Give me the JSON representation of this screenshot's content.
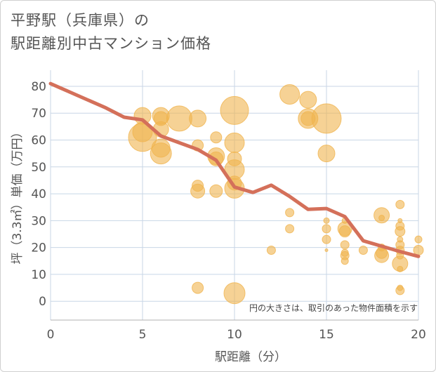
{
  "chart_data": {
    "type": "scatter",
    "title_lines": [
      "平野駅（兵庫県）の",
      "駅距離別中古マンション価格"
    ],
    "xlabel": "駅距離（分）",
    "ylabel": "坪（3.3㎡）単価（万円）",
    "note": "円の大きさは、取引のあった物件面積を示す",
    "xlim": [
      0,
      20
    ],
    "ylim": [
      -7,
      86
    ],
    "xticks": [
      0,
      5,
      10,
      15,
      20
    ],
    "yticks": [
      0,
      10,
      20,
      30,
      40,
      50,
      60,
      70,
      80
    ],
    "grid": true,
    "colors": {
      "bubble": "#f0b44f",
      "line": "#d4705a",
      "grid": "#c8d6e6"
    },
    "bubbles": [
      {
        "x": 5,
        "y": 69,
        "s": 12
      },
      {
        "x": 5,
        "y": 61,
        "s": 20
      },
      {
        "x": 5,
        "y": 63,
        "s": 14
      },
      {
        "x": 6,
        "y": 69,
        "s": 12
      },
      {
        "x": 6,
        "y": 68,
        "s": 10
      },
      {
        "x": 6,
        "y": 64,
        "s": 11
      },
      {
        "x": 6,
        "y": 57,
        "s": 13
      },
      {
        "x": 6,
        "y": 55,
        "s": 15
      },
      {
        "x": 7,
        "y": 68,
        "s": 18
      },
      {
        "x": 8,
        "y": 68,
        "s": 12
      },
      {
        "x": 8,
        "y": 58,
        "s": 8
      },
      {
        "x": 8,
        "y": 43,
        "s": 8
      },
      {
        "x": 8,
        "y": 41,
        "s": 10
      },
      {
        "x": 8,
        "y": 5,
        "s": 8
      },
      {
        "x": 9,
        "y": 61,
        "s": 8
      },
      {
        "x": 9,
        "y": 54,
        "s": 12
      },
      {
        "x": 9,
        "y": 53,
        "s": 10
      },
      {
        "x": 9,
        "y": 41,
        "s": 9
      },
      {
        "x": 10,
        "y": 71,
        "s": 20
      },
      {
        "x": 10,
        "y": 59,
        "s": 14
      },
      {
        "x": 10,
        "y": 53,
        "s": 10
      },
      {
        "x": 10,
        "y": 49,
        "s": 14
      },
      {
        "x": 10,
        "y": 44,
        "s": 10
      },
      {
        "x": 10,
        "y": 42,
        "s": 14
      },
      {
        "x": 10,
        "y": 3,
        "s": 15
      },
      {
        "x": 12,
        "y": 19,
        "s": 6
      },
      {
        "x": 13,
        "y": 77,
        "s": 14
      },
      {
        "x": 13,
        "y": 33,
        "s": 6
      },
      {
        "x": 13,
        "y": 27,
        "s": 6
      },
      {
        "x": 14,
        "y": 75,
        "s": 12
      },
      {
        "x": 14,
        "y": 68,
        "s": 14
      },
      {
        "x": 14,
        "y": 68,
        "s": 10
      },
      {
        "x": 15,
        "y": 68,
        "s": 21
      },
      {
        "x": 15,
        "y": 55,
        "s": 12
      },
      {
        "x": 15,
        "y": 30,
        "s": 4
      },
      {
        "x": 15,
        "y": 27,
        "s": 6
      },
      {
        "x": 15,
        "y": 23,
        "s": 6
      },
      {
        "x": 15,
        "y": 19,
        "s": 2
      },
      {
        "x": 16,
        "y": 30,
        "s": 4
      },
      {
        "x": 16,
        "y": 27,
        "s": 10
      },
      {
        "x": 16,
        "y": 26,
        "s": 8
      },
      {
        "x": 16,
        "y": 21,
        "s": 6
      },
      {
        "x": 16,
        "y": 18,
        "s": 5
      },
      {
        "x": 16,
        "y": 17,
        "s": 6
      },
      {
        "x": 16,
        "y": 15,
        "s": 5
      },
      {
        "x": 17,
        "y": 19,
        "s": 6
      },
      {
        "x": 18,
        "y": 32,
        "s": 11
      },
      {
        "x": 18,
        "y": 31,
        "s": 4
      },
      {
        "x": 18,
        "y": 20,
        "s": 5
      },
      {
        "x": 18,
        "y": 18,
        "s": 8
      },
      {
        "x": 18,
        "y": 17,
        "s": 10
      },
      {
        "x": 19,
        "y": 36,
        "s": 6
      },
      {
        "x": 19,
        "y": 30,
        "s": 3
      },
      {
        "x": 19,
        "y": 28,
        "s": 6
      },
      {
        "x": 19,
        "y": 26,
        "s": 7
      },
      {
        "x": 19,
        "y": 23,
        "s": 4
      },
      {
        "x": 19,
        "y": 21,
        "s": 6
      },
      {
        "x": 19,
        "y": 19,
        "s": 6
      },
      {
        "x": 19,
        "y": 17,
        "s": 5
      },
      {
        "x": 19,
        "y": 14,
        "s": 11
      },
      {
        "x": 19,
        "y": 12,
        "s": 4
      },
      {
        "x": 19,
        "y": 5,
        "s": 4
      },
      {
        "x": 19,
        "y": 4,
        "s": 6
      },
      {
        "x": 20,
        "y": 23,
        "s": 5
      },
      {
        "x": 20,
        "y": 19,
        "s": 7
      }
    ],
    "trend": {
      "x": [
        0,
        1,
        2,
        3,
        4,
        5,
        6,
        7,
        8,
        9,
        10,
        11,
        12,
        13,
        14,
        15,
        16,
        17,
        18,
        19,
        20
      ],
      "y": [
        81,
        78,
        75,
        72,
        68.5,
        67.5,
        61.5,
        59,
        56.5,
        52.5,
        42.5,
        40.5,
        43.2,
        39,
        34.2,
        34.5,
        31.5,
        22.5,
        20.5,
        18.5,
        16.7
      ]
    }
  }
}
